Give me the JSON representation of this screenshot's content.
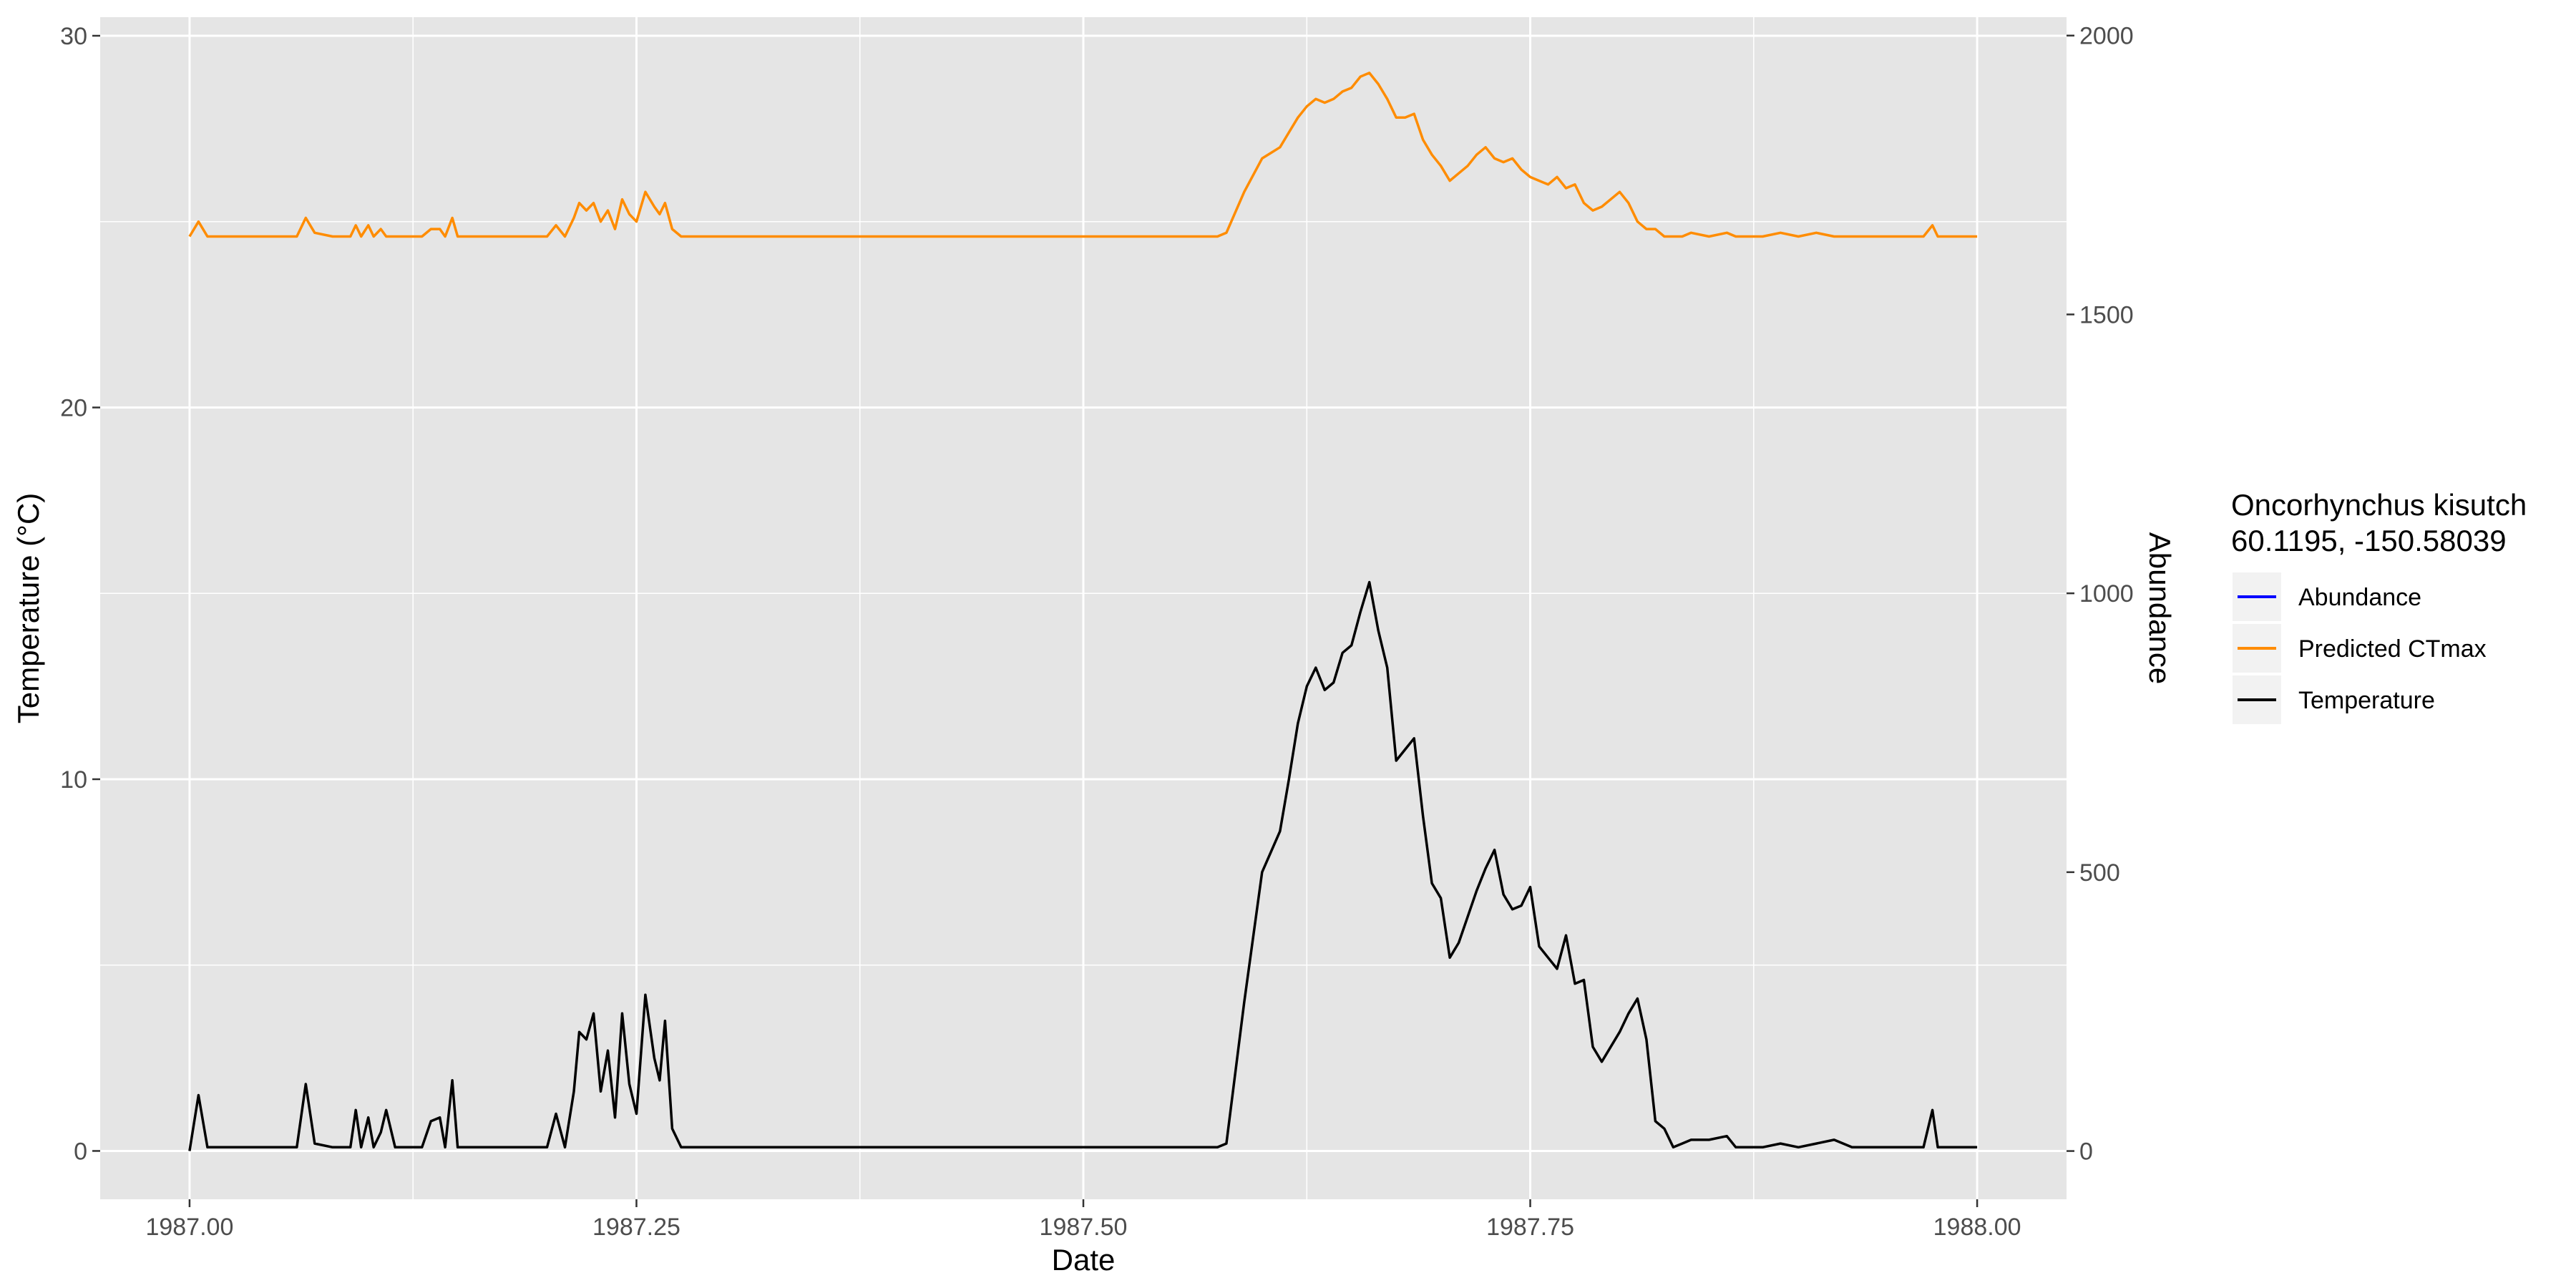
{
  "chart_data": {
    "type": "line",
    "xlabel": "Date",
    "ylabel": "Temperature (°C)",
    "ylabel_right": "Abundance",
    "xlim": [
      1986.95,
      1988.05
    ],
    "ylim": [
      -1.3,
      30.5
    ],
    "ylim_right": [
      -86.5,
      2033
    ],
    "x_ticks": [
      1987.0,
      1987.25,
      1987.5,
      1987.75,
      1988.0
    ],
    "x_tick_labels": [
      "1987.00",
      "1987.25",
      "1987.50",
      "1987.75",
      "1988.00"
    ],
    "y_ticks": [
      0,
      10,
      20,
      30
    ],
    "y_tick_labels": [
      "0",
      "10",
      "20",
      "30"
    ],
    "y_right_ticks": [
      0,
      500,
      1000,
      1500,
      2000
    ],
    "y_right_tick_labels": [
      "0",
      "500",
      "1000",
      "1500",
      "2000"
    ],
    "grid": true,
    "legend": {
      "title": [
        "Oncorhynchus kisutch",
        "60.1195, -150.58039"
      ],
      "position": "right",
      "entries": [
        "Abundance",
        "Predicted CTmax",
        "Temperature"
      ]
    },
    "colors": {
      "abundance": "#0000ff",
      "predicted_ctmax": "#ff8c00",
      "temperature": "#000000",
      "panel": "#e5e5e5",
      "grid": "#ffffff",
      "right_axis_title": "#0000ff"
    },
    "series": [
      {
        "name": "Predicted CTmax",
        "axis": "left",
        "x": [
          1987.0,
          1987.005,
          1987.01,
          1987.02,
          1987.03,
          1987.04,
          1987.05,
          1987.055,
          1987.06,
          1987.065,
          1987.07,
          1987.08,
          1987.09,
          1987.093,
          1987.096,
          1987.1,
          1987.103,
          1987.107,
          1987.11,
          1987.115,
          1987.12,
          1987.13,
          1987.135,
          1987.14,
          1987.143,
          1987.147,
          1987.15,
          1987.16,
          1987.17,
          1987.18,
          1987.19,
          1987.2,
          1987.205,
          1987.21,
          1987.215,
          1987.218,
          1987.222,
          1987.226,
          1987.23,
          1987.234,
          1987.238,
          1987.242,
          1987.246,
          1987.25,
          1987.255,
          1987.26,
          1987.263,
          1987.266,
          1987.27,
          1987.275,
          1987.28,
          1987.29,
          1987.3,
          1987.4,
          1987.5,
          1987.55,
          1987.575,
          1987.58,
          1987.59,
          1987.6,
          1987.61,
          1987.615,
          1987.62,
          1987.625,
          1987.63,
          1987.635,
          1987.64,
          1987.645,
          1987.65,
          1987.655,
          1987.66,
          1987.665,
          1987.67,
          1987.675,
          1987.68,
          1987.685,
          1987.69,
          1987.695,
          1987.7,
          1987.705,
          1987.71,
          1987.715,
          1987.72,
          1987.725,
          1987.73,
          1987.735,
          1987.74,
          1987.745,
          1987.75,
          1987.755,
          1987.76,
          1987.765,
          1987.77,
          1987.775,
          1987.78,
          1987.785,
          1987.79,
          1987.8,
          1987.805,
          1987.81,
          1987.815,
          1987.82,
          1987.825,
          1987.83,
          1987.835,
          1987.84,
          1987.85,
          1987.86,
          1987.865,
          1987.87,
          1987.88,
          1987.89,
          1987.9,
          1987.91,
          1987.92,
          1987.93,
          1987.95,
          1987.97,
          1987.975,
          1987.978,
          1987.98,
          1987.99,
          1988.0
        ],
        "values": [
          24.6,
          25.0,
          24.6,
          24.6,
          24.6,
          24.6,
          24.6,
          24.6,
          24.6,
          25.1,
          24.7,
          24.6,
          24.6,
          24.9,
          24.6,
          24.9,
          24.6,
          24.8,
          24.6,
          24.6,
          24.6,
          24.6,
          24.8,
          24.8,
          24.6,
          25.1,
          24.6,
          24.6,
          24.6,
          24.6,
          24.6,
          24.6,
          24.9,
          24.6,
          25.1,
          25.5,
          25.3,
          25.5,
          25.0,
          25.3,
          24.8,
          25.6,
          25.2,
          25.0,
          25.8,
          25.4,
          25.2,
          25.5,
          24.8,
          24.6,
          24.6,
          24.6,
          24.6,
          24.6,
          24.6,
          24.6,
          24.6,
          24.7,
          25.8,
          26.7,
          27.0,
          27.4,
          27.8,
          28.1,
          28.3,
          28.2,
          28.3,
          28.5,
          28.6,
          28.9,
          29.0,
          28.7,
          28.3,
          27.8,
          27.8,
          27.9,
          27.2,
          26.8,
          26.5,
          26.1,
          26.3,
          26.5,
          26.8,
          27.0,
          26.7,
          26.6,
          26.7,
          26.4,
          26.2,
          26.1,
          26.0,
          26.2,
          25.9,
          26.0,
          25.5,
          25.3,
          25.4,
          25.8,
          25.5,
          25.0,
          24.8,
          24.8,
          24.6,
          24.6,
          24.6,
          24.7,
          24.6,
          24.7,
          24.6,
          24.6,
          24.6,
          24.7,
          24.6,
          24.7,
          24.6,
          24.6,
          24.6,
          24.6,
          24.9,
          24.6,
          24.6,
          24.6,
          24.6
        ]
      },
      {
        "name": "Temperature",
        "axis": "left",
        "x": [
          1987.0,
          1987.005,
          1987.01,
          1987.02,
          1987.03,
          1987.04,
          1987.05,
          1987.055,
          1987.06,
          1987.065,
          1987.07,
          1987.08,
          1987.09,
          1987.093,
          1987.096,
          1987.1,
          1987.103,
          1987.107,
          1987.11,
          1987.115,
          1987.12,
          1987.13,
          1987.135,
          1987.14,
          1987.143,
          1987.147,
          1987.15,
          1987.16,
          1987.17,
          1987.18,
          1987.19,
          1987.2,
          1987.205,
          1987.21,
          1987.215,
          1987.218,
          1987.222,
          1987.226,
          1987.23,
          1987.234,
          1987.238,
          1987.242,
          1987.246,
          1987.25,
          1987.255,
          1987.26,
          1987.263,
          1987.266,
          1987.27,
          1987.275,
          1987.28,
          1987.29,
          1987.3,
          1987.4,
          1987.5,
          1987.55,
          1987.575,
          1987.58,
          1987.59,
          1987.6,
          1987.61,
          1987.615,
          1987.62,
          1987.625,
          1987.63,
          1987.635,
          1987.64,
          1987.645,
          1987.65,
          1987.655,
          1987.66,
          1987.665,
          1987.67,
          1987.675,
          1987.68,
          1987.685,
          1987.69,
          1987.695,
          1987.7,
          1987.705,
          1987.71,
          1987.715,
          1987.72,
          1987.725,
          1987.73,
          1987.735,
          1987.74,
          1987.745,
          1987.75,
          1987.755,
          1987.76,
          1987.765,
          1987.77,
          1987.775,
          1987.78,
          1987.785,
          1987.79,
          1987.8,
          1987.805,
          1987.81,
          1987.815,
          1987.82,
          1987.825,
          1987.83,
          1987.835,
          1987.84,
          1987.85,
          1987.86,
          1987.865,
          1987.87,
          1987.88,
          1987.89,
          1987.9,
          1987.91,
          1987.92,
          1987.93,
          1987.95,
          1987.97,
          1987.975,
          1987.978,
          1987.98,
          1987.99,
          1988.0
        ],
        "values": [
          0.0,
          1.5,
          0.1,
          0.1,
          0.1,
          0.1,
          0.1,
          0.1,
          0.1,
          1.8,
          0.2,
          0.1,
          0.1,
          1.1,
          0.1,
          0.9,
          0.1,
          0.5,
          1.1,
          0.1,
          0.1,
          0.1,
          0.8,
          0.9,
          0.1,
          1.9,
          0.1,
          0.1,
          0.1,
          0.1,
          0.1,
          0.1,
          1.0,
          0.1,
          1.6,
          3.2,
          3.0,
          3.7,
          1.6,
          2.7,
          0.9,
          3.7,
          1.8,
          1.0,
          4.2,
          2.5,
          1.9,
          3.5,
          0.6,
          0.1,
          0.1,
          0.1,
          0.1,
          0.1,
          0.1,
          0.1,
          0.1,
          0.2,
          4.0,
          7.5,
          8.6,
          10.0,
          11.5,
          12.5,
          13.0,
          12.4,
          12.6,
          13.4,
          13.6,
          14.5,
          15.3,
          14.0,
          13.0,
          10.5,
          10.8,
          11.1,
          9.0,
          7.2,
          6.8,
          5.2,
          5.6,
          6.3,
          7.0,
          7.6,
          8.1,
          6.9,
          6.5,
          6.6,
          7.1,
          5.5,
          5.2,
          4.9,
          5.8,
          4.5,
          4.6,
          2.8,
          2.4,
          3.2,
          3.7,
          4.1,
          3.0,
          0.8,
          0.6,
          0.1,
          0.2,
          0.3,
          0.3,
          0.4,
          0.1,
          0.1,
          0.1,
          0.2,
          0.1,
          0.2,
          0.3,
          0.1,
          0.1,
          0.1,
          1.1,
          0.1,
          0.1,
          0.1,
          0.1
        ]
      },
      {
        "name": "Abundance",
        "axis": "right",
        "x": [],
        "values": []
      }
    ]
  }
}
